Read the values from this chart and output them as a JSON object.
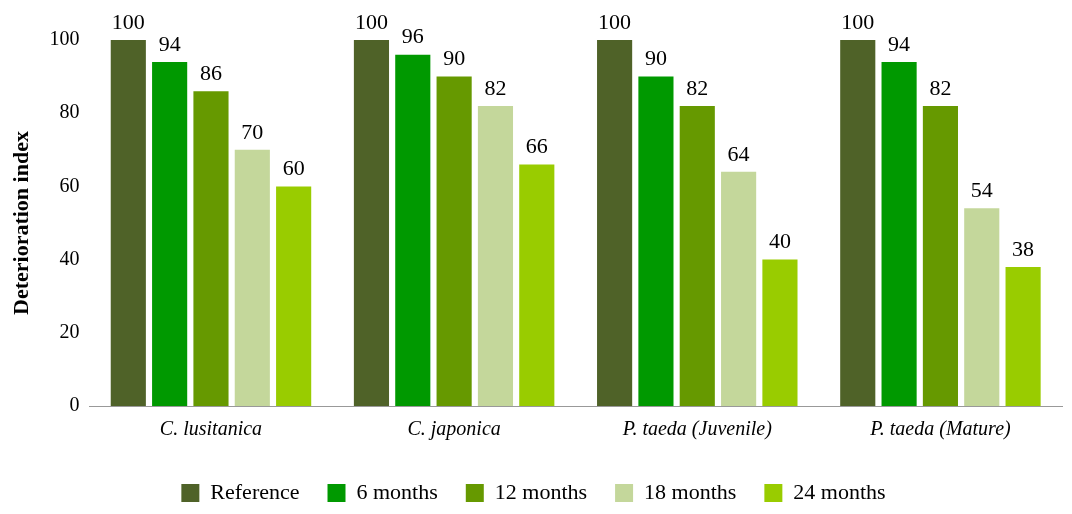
{
  "chart_data": {
    "type": "bar",
    "ylabel": "Deterioration index",
    "categories": [
      "C. lusitanica",
      "C. japonica",
      "P. taeda (Juvenile)",
      "P. taeda (Mature)"
    ],
    "series": [
      {
        "name": "Reference",
        "color": "#4f6228",
        "values": [
          100,
          100,
          100,
          100
        ]
      },
      {
        "name": "6 months",
        "color": "#009900",
        "values": [
          94,
          96,
          90,
          94
        ]
      },
      {
        "name": "12 months",
        "color": "#669900",
        "values": [
          86,
          90,
          82,
          82
        ]
      },
      {
        "name": "18 months",
        "color": "#c4d79b",
        "values": [
          70,
          82,
          64,
          54
        ]
      },
      {
        "name": "24 months",
        "color": "#99cc00",
        "values": [
          60,
          66,
          40,
          38
        ]
      }
    ],
    "ylim": [
      0,
      100
    ],
    "yticks": [
      0,
      20,
      40,
      60,
      80,
      100
    ],
    "grid": false,
    "legend": "bottom",
    "data_labels": true
  }
}
